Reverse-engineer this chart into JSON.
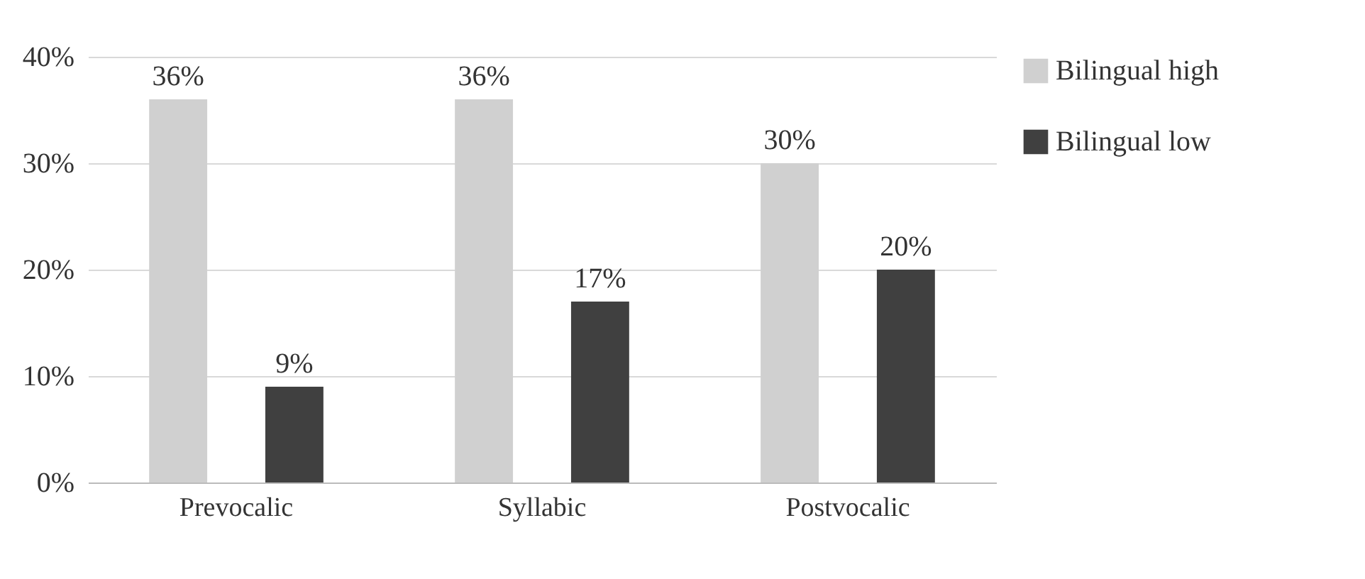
{
  "chart_data": {
    "type": "bar",
    "categories": [
      "Prevocalic",
      "Syllabic",
      "Postvocalic"
    ],
    "series": [
      {
        "name": "Bilingual high",
        "color": "#d0d0d0",
        "values": [
          36,
          36,
          30
        ],
        "value_labels": [
          "36%",
          "36%",
          "30%"
        ]
      },
      {
        "name": "Bilingual low",
        "color": "#404040",
        "values": [
          9,
          17,
          20
        ],
        "value_labels": [
          "9%",
          "17%",
          "20%"
        ]
      }
    ],
    "ylim": [
      0,
      40
    ],
    "yticks": [
      {
        "value": 0,
        "label": "0%"
      },
      {
        "value": 10,
        "label": "10%"
      },
      {
        "value": 20,
        "label": "20%"
      },
      {
        "value": 30,
        "label": "30%"
      },
      {
        "value": 40,
        "label": "40%"
      }
    ],
    "grid": "y",
    "legend": "right"
  }
}
